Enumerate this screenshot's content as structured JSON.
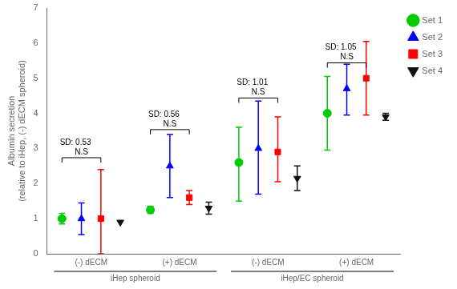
{
  "chart_data": {
    "type": "scatter",
    "categories": [
      "(-) dECM",
      "(+) dECM",
      "(-) dECM",
      "(+) dECM"
    ],
    "groups": [
      "iHep spheroid",
      "iHep/EC spheroid"
    ],
    "series": [
      {
        "name": "Set 1",
        "color": "#00cc00",
        "marker": "circle",
        "values": [
          1.0,
          1.25,
          2.6,
          4.0
        ],
        "err_low": [
          0.15,
          0.1,
          1.1,
          1.05
        ],
        "err_high": [
          0.15,
          0.1,
          1.0,
          1.05
        ]
      },
      {
        "name": "Set 2",
        "color": "#0000ff",
        "marker": "triangle",
        "values": [
          1.0,
          2.5,
          3.0,
          4.7
        ],
        "err_low": [
          0.45,
          0.9,
          1.3,
          0.75
        ],
        "err_high": [
          0.45,
          0.9,
          1.35,
          0.7
        ]
      },
      {
        "name": "Set 3",
        "color": "#ff0000",
        "marker": "square",
        "values": [
          1.0,
          1.6,
          2.9,
          5.0
        ],
        "err_low": [
          1.0,
          0.2,
          0.85,
          1.05
        ],
        "err_high": [
          1.4,
          0.2,
          1.0,
          1.05
        ]
      },
      {
        "name": "Set 4",
        "color": "#111111",
        "marker": "triangle-down",
        "values": [
          0.9,
          1.3,
          2.15,
          3.9
        ],
        "err_low": [
          0.0,
          0.17,
          0.35,
          0.1
        ],
        "err_high": [
          0.0,
          0.17,
          0.35,
          0.1
        ]
      }
    ],
    "ylabel": "Albumin secretion\n(relative to iHep, (-) dECM spheroid)",
    "ylim": [
      0,
      7
    ],
    "yticks": [
      0,
      1,
      2,
      3,
      4,
      5,
      6,
      7
    ],
    "grid": false,
    "legend": "right",
    "brackets": [
      {
        "y": 2.6,
        "label": "N.S",
        "sd": "SD: 0.53"
      },
      {
        "y": 3.4,
        "label": "N.S",
        "sd": "SD: 0.56"
      },
      {
        "y": 4.3,
        "label": "N.S",
        "sd": "SD: 1.01"
      },
      {
        "y": 5.3,
        "label": "N.S",
        "sd": "SD: 1.05"
      }
    ]
  }
}
